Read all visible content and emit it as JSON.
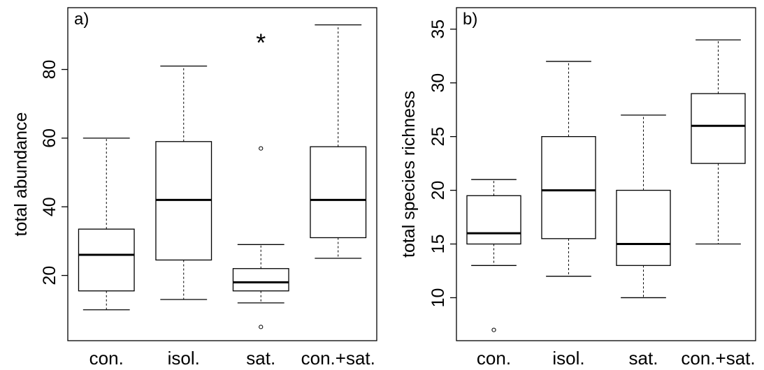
{
  "chart_data": [
    {
      "type": "box",
      "panel_label": "a)",
      "ylabel": "total abundance",
      "ylim": [
        1,
        98
      ],
      "yticks": [
        20,
        40,
        60,
        80
      ],
      "categories": [
        "con.",
        "isol.",
        "sat.",
        "con.+sat."
      ],
      "boxes": [
        {
          "category": "con.",
          "whisker_low": 10,
          "q1": 15.5,
          "median": 26,
          "q3": 33.5,
          "whisker_high": 60,
          "outliers": []
        },
        {
          "category": "isol.",
          "whisker_low": 13,
          "q1": 24.5,
          "median": 42,
          "q3": 59,
          "whisker_high": 81,
          "outliers": []
        },
        {
          "category": "sat.",
          "whisker_low": 12,
          "q1": 15.5,
          "median": 18,
          "q3": 22,
          "whisker_high": 29,
          "outliers": [
            57,
            5
          ]
        },
        {
          "category": "con.+sat.",
          "whisker_low": 25,
          "q1": 31,
          "median": 42,
          "q3": 57.5,
          "whisker_high": 93,
          "outliers": []
        }
      ],
      "annotations": [
        {
          "text": "*",
          "category": "sat.",
          "y": 89
        }
      ]
    },
    {
      "type": "box",
      "panel_label": "b)",
      "ylabel": "total species richness",
      "ylim": [
        6,
        37
      ],
      "yticks": [
        10,
        15,
        20,
        25,
        30,
        35
      ],
      "categories": [
        "con.",
        "isol.",
        "sat.",
        "con.+sat."
      ],
      "boxes": [
        {
          "category": "con.",
          "whisker_low": 13,
          "q1": 15,
          "median": 16,
          "q3": 19.5,
          "whisker_high": 21,
          "outliers": [
            7
          ]
        },
        {
          "category": "isol.",
          "whisker_low": 12,
          "q1": 15.5,
          "median": 20,
          "q3": 25,
          "whisker_high": 32,
          "outliers": []
        },
        {
          "category": "sat.",
          "whisker_low": 10,
          "q1": 13,
          "median": 15,
          "q3": 20,
          "whisker_high": 27,
          "outliers": []
        },
        {
          "category": "con.+sat.",
          "whisker_low": 15,
          "q1": 22.5,
          "median": 26,
          "q3": 29,
          "whisker_high": 34,
          "outliers": []
        }
      ],
      "annotations": []
    }
  ]
}
